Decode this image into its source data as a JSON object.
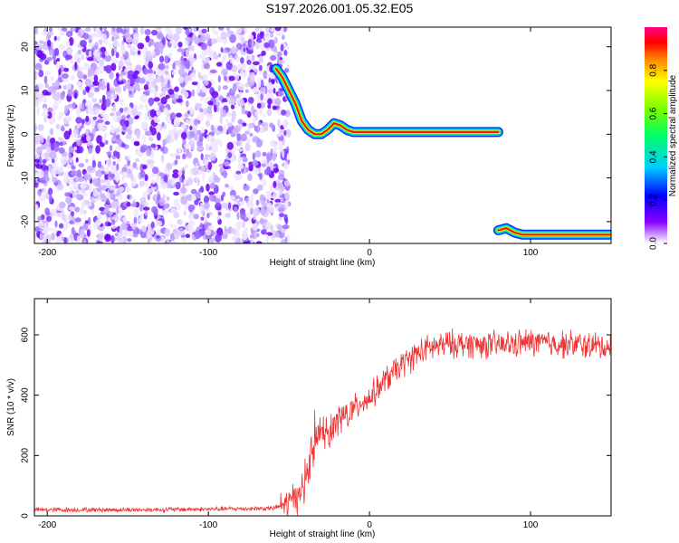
{
  "title": "S197.2026.001.05.32.E05",
  "chart_data": [
    {
      "type": "heatmap",
      "xlabel": "Height of straight line (km)",
      "ylabel": "Frequency (Hz)",
      "xlim": [
        -208,
        150
      ],
      "ylim": [
        -25,
        24.5
      ],
      "xticks": [
        -200,
        -100,
        0,
        100
      ],
      "yticks": [
        -20,
        -10,
        0,
        10,
        20
      ],
      "noise_region_x": [
        -208,
        -50
      ],
      "ridge_segments": [
        {
          "x": [
            -58,
            -54,
            -50,
            -46,
            -42,
            -38,
            -34,
            -30,
            -26,
            -22,
            -18,
            -14,
            -10,
            -6,
            0,
            10,
            20,
            30,
            40,
            50,
            60,
            70,
            80
          ],
          "y": [
            15,
            13,
            10,
            7,
            3,
            1,
            0,
            0,
            1,
            2.5,
            2,
            1,
            0.5,
            0.5,
            0.5,
            0.5,
            0.5,
            0.5,
            0.5,
            0.5,
            0.5,
            0.5,
            0.5
          ]
        },
        {
          "x": [
            80,
            85,
            90,
            95,
            100,
            110,
            120,
            130,
            140,
            150
          ],
          "y": [
            -22,
            -21.5,
            -22.5,
            -23,
            -23,
            -23,
            -23,
            -23,
            -23,
            -23
          ]
        }
      ],
      "colorbar": {
        "label": "Normalized spectral amplitude",
        "range": [
          0,
          1
        ],
        "ticks": [
          0,
          0.2,
          0.4,
          0.6,
          0.8
        ],
        "tick_labels": [
          "0.0",
          "0.2",
          "0.4",
          "0.6",
          "0.8"
        ]
      }
    },
    {
      "type": "line",
      "xlabel": "Height of straight line (km)",
      "ylabel": "SNR (10 * v/v)",
      "xlim": [
        -208,
        150
      ],
      "ylim": [
        0,
        720
      ],
      "xticks": [
        -200,
        -100,
        0,
        100
      ],
      "yticks": [
        0,
        200,
        400,
        600
      ],
      "series": [
        {
          "color": "#ee3333",
          "x": [
            -208,
            -150,
            -100,
            -60,
            -50,
            -40,
            -35,
            -30,
            -25,
            -20,
            -15,
            -10,
            -5,
            0,
            5,
            10,
            20,
            30,
            40,
            50,
            60,
            80,
            100,
            120,
            150
          ],
          "y": [
            20,
            20,
            22,
            25,
            40,
            100,
            230,
            280,
            270,
            320,
            330,
            350,
            380,
            390,
            420,
            450,
            500,
            540,
            560,
            570,
            570,
            565,
            575,
            570,
            560
          ]
        }
      ]
    }
  ]
}
